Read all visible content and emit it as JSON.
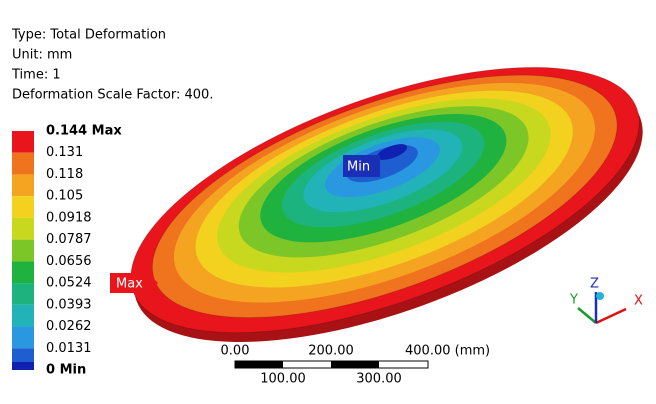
{
  "info": [
    "Type: Total Deformation",
    "Unit: mm",
    "Time: 1",
    "Deformation Scale Factor: 400."
  ],
  "legend": {
    "labels": [
      "0.144 Max",
      "0.131",
      "0.118",
      "0.105",
      "0.0918",
      "0.0787",
      "0.0656",
      "0.0524",
      "0.0393",
      "0.0262",
      "0.0131",
      "0 Min"
    ],
    "colors": [
      "#e8161c",
      "#f0731d",
      "#f5a422",
      "#f2d11f",
      "#c8d81e",
      "#7cc628",
      "#1fb23e",
      "#1cb37e",
      "#22b3b8",
      "#2a98e0",
      "#1e5ed0"
    ]
  },
  "probes": {
    "max": "Max",
    "min": "Min"
  },
  "scale_bar": {
    "top": [
      "0.00",
      "200.00",
      "400.00 (mm)"
    ],
    "bottom": [
      "100.00",
      "300.00"
    ]
  },
  "triad": {
    "x": "X",
    "y": "Y",
    "z": "Z"
  }
}
